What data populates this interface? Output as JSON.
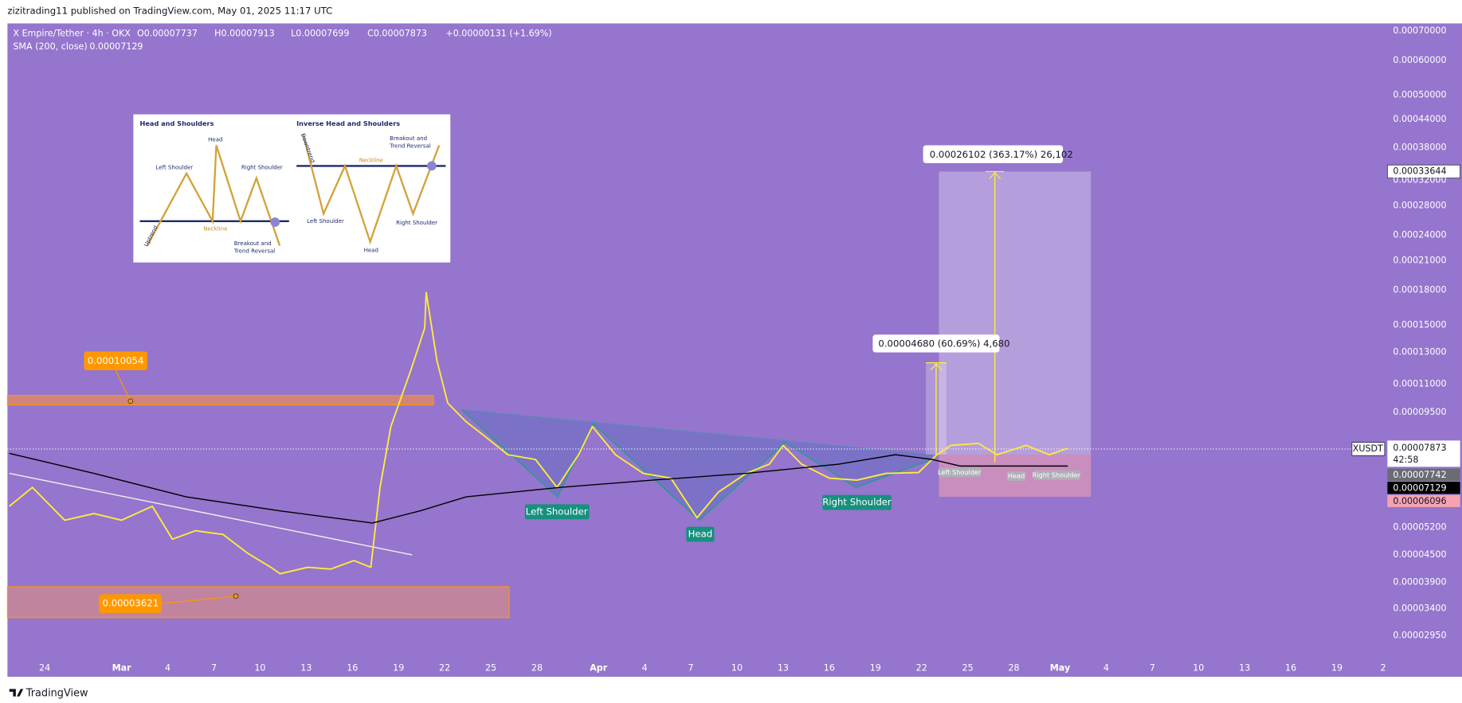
{
  "header": {
    "published": "zizitrading11 published on TradingView.com, May 01, 2025 11:17 UTC"
  },
  "legend": {
    "open": "O0.00007737",
    "high": "H0.00007913",
    "low": "L0.00007699",
    "close": "C0.00007873",
    "change": "+0.00000131 (+1.69%)",
    "sma_value": "0.00007129"
  },
  "price_tags": {
    "symbol": "XUSDT",
    "last": "0.00007873",
    "countdown": "42:58",
    "level": "0.00007742",
    "sma": "0.00007129",
    "stop": "0.00006096",
    "target": "0.00033644"
  },
  "annotations": {
    "resistance": "0.00010054",
    "support": "0.00003621",
    "left_shoulder": "Left Shoulder",
    "head": "Head",
    "right_shoulder": "Right Shoulder",
    "measure_small": "0.00004680 (60.69%) 4,680",
    "measure_large": "0.00026102 (363.17%) 26,102",
    "mini_left_shoulder": "Left Shoulder",
    "mini_head": "Head",
    "mini_right_shoulder": "Right Shoulder"
  },
  "inset": {
    "left": {
      "title": "Head and Shoulders",
      "head": "Head",
      "left_shoulder": "Left Shoulder",
      "right_shoulder": "Right Shoulder",
      "neckline": "Neckline",
      "breakout_1": "Breakout and",
      "breakout_2": "Trend Reversal",
      "trend": "Uptrend"
    },
    "right": {
      "title": "Inverse Head and Shoulders",
      "head": "Head",
      "left_shoulder": "Left Shoulder",
      "right_shoulder": "Right Shoulder",
      "neckline": "Neckline",
      "breakout_1": "Breakout and",
      "breakout_2": "Trend Reversal",
      "trend": "Downtrend"
    }
  },
  "footer": {
    "brand": "TradingView"
  },
  "chart_data": {
    "type": "line",
    "log_scale": true,
    "grid": false,
    "xlim": [
      -2.42,
      87.4
    ],
    "ylim": [
      2.65e-05,
      0.000728
    ],
    "xticks": [
      {
        "value": 0,
        "label": "24"
      },
      {
        "value": 5,
        "label": "Mar"
      },
      {
        "value": 8,
        "label": "4"
      },
      {
        "value": 11,
        "label": "7"
      },
      {
        "value": 14,
        "label": "10"
      },
      {
        "value": 17,
        "label": "13"
      },
      {
        "value": 20,
        "label": "16"
      },
      {
        "value": 23,
        "label": "19"
      },
      {
        "value": 26,
        "label": "22"
      },
      {
        "value": 29,
        "label": "25"
      },
      {
        "value": 32,
        "label": "28"
      },
      {
        "value": 36,
        "label": "Apr"
      },
      {
        "value": 39,
        "label": "4"
      },
      {
        "value": 42,
        "label": "7"
      },
      {
        "value": 45,
        "label": "10"
      },
      {
        "value": 48,
        "label": "13"
      },
      {
        "value": 51,
        "label": "16"
      },
      {
        "value": 54,
        "label": "19"
      },
      {
        "value": 57,
        "label": "22"
      },
      {
        "value": 60,
        "label": "25"
      },
      {
        "value": 63,
        "label": "28"
      },
      {
        "value": 66,
        "label": "May"
      },
      {
        "value": 69,
        "label": "4"
      },
      {
        "value": 72,
        "label": "7"
      },
      {
        "value": 75,
        "label": "10"
      },
      {
        "value": 78,
        "label": "13"
      },
      {
        "value": 81,
        "label": "16"
      },
      {
        "value": 84,
        "label": "19"
      },
      {
        "value": 87,
        "label": "2"
      }
    ],
    "yticks": [
      {
        "value": 0.0007,
        "label": "0.00070000"
      },
      {
        "value": 0.0006,
        "label": "0.00060000"
      },
      {
        "value": 0.0005,
        "label": "0.00050000"
      },
      {
        "value": 0.00044,
        "label": "0.00044000"
      },
      {
        "value": 0.00038,
        "label": "0.00038000"
      },
      {
        "value": 0.00032,
        "label": "0.00032000"
      },
      {
        "value": 0.00028,
        "label": "0.00028000"
      },
      {
        "value": 0.00024,
        "label": "0.00024000"
      },
      {
        "value": 0.00021,
        "label": "0.00021000"
      },
      {
        "value": 0.00018,
        "label": "0.00018000"
      },
      {
        "value": 0.00015,
        "label": "0.00015000"
      },
      {
        "value": 0.00013,
        "label": "0.00013000"
      },
      {
        "value": 0.00011,
        "label": "0.00011000"
      },
      {
        "value": 9.5e-05,
        "label": "0.00009500"
      },
      {
        "value": 5.2e-05,
        "label": "0.00005200"
      },
      {
        "value": 4.5e-05,
        "label": "0.00004500"
      },
      {
        "value": 3.9e-05,
        "label": "0.00003900"
      },
      {
        "value": 3.4e-05,
        "label": "0.00003400"
      },
      {
        "value": 2.95e-05,
        "label": "0.00002950"
      }
    ],
    "series": [
      {
        "name": "X Empire/Tether · 4h · OKX",
        "color": "#ffeb3b",
        "x": [
          -2.3,
          -0.8,
          1.3,
          3.2,
          5.0,
          7.0,
          8.3,
          9.8,
          11.6,
          13.2,
          14.7,
          15.3,
          17.1,
          18.6,
          20.1,
          21.2,
          21.8,
          22.5,
          23.8,
          24.7,
          24.8,
          25.5,
          26.2,
          27.4,
          28.6,
          30.1,
          31.9,
          33.3,
          34.7,
          35.6,
          37.1,
          38.9,
          40.7,
          42.4,
          43.8,
          45.6,
          47.1,
          48.0,
          49.2,
          51.0,
          52.8,
          54.7,
          56.8,
          58.0,
          58.9,
          60.7,
          61.9,
          63.8,
          65.3,
          66.5
        ],
        "values": [
          5.81e-05,
          6.41e-05,
          5.4e-05,
          5.59e-05,
          5.4e-05,
          5.81e-05,
          4.89e-05,
          5.11e-05,
          5.01e-05,
          4.54e-05,
          4.22e-05,
          4.08e-05,
          4.22e-05,
          4.18e-05,
          4.37e-05,
          4.22e-05,
          6.41e-05,
          8.82e-05,
          0.0001184,
          0.0001477,
          0.000178,
          0.0001243,
          9.97e-05,
          9.04e-05,
          8.39e-05,
          7.61e-05,
          7.42e-05,
          6.41e-05,
          7.61e-05,
          8.82e-05,
          7.61e-05,
          6.9e-05,
          6.73e-05,
          5.47e-05,
          6.26e-05,
          6.9e-05,
          7.24e-05,
          7.99e-05,
          7.24e-05,
          6.73e-05,
          6.66e-05,
          6.9e-05,
          6.93e-05,
          7.61e-05,
          7.99e-05,
          8.07e-05,
          7.61e-05,
          7.99e-05,
          7.61e-05,
          7.87e-05
        ]
      },
      {
        "name": "SMA (200, close)",
        "color": "#000000",
        "x": [
          -2.3,
          3.2,
          9.2,
          15.3,
          21.3,
          24.4,
          27.4,
          33.5,
          39.5,
          45.6,
          51.6,
          55.3,
          57.7,
          59.5,
          66.5
        ],
        "values": [
          7.66e-05,
          6.9e-05,
          6.1e-05,
          5.67e-05,
          5.32e-05,
          5.67e-05,
          6.1e-05,
          6.41e-05,
          6.66e-05,
          6.9e-05,
          7.24e-05,
          7.61e-05,
          7.42e-05,
          7.17e-05,
          7.17e-05
        ]
      }
    ]
  }
}
